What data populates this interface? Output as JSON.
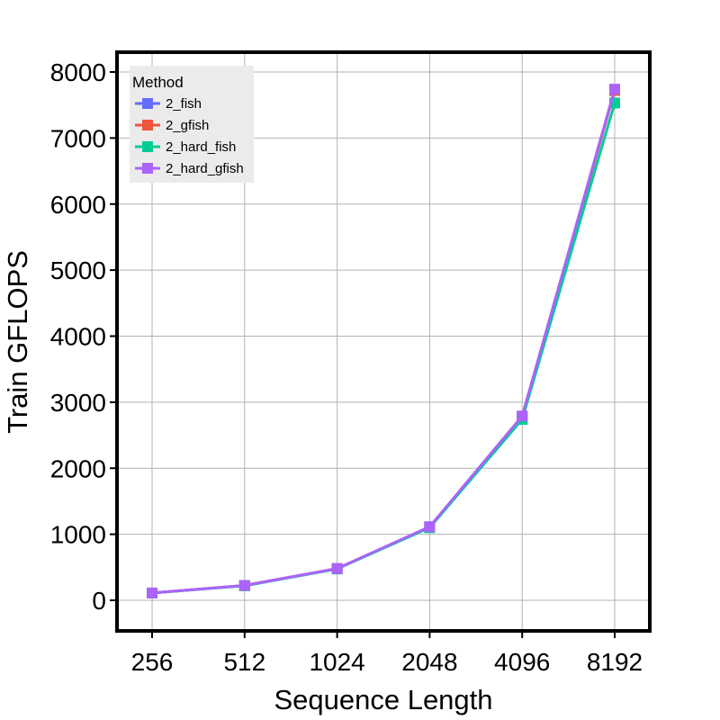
{
  "chart_data": {
    "type": "line",
    "xlabel": "Sequence Length",
    "ylabel": "Train GFLOPS",
    "categories": [
      "256",
      "512",
      "1024",
      "2048",
      "4096",
      "8192"
    ],
    "yticks": [
      0,
      1000,
      2000,
      3000,
      4000,
      5000,
      6000,
      7000,
      8000
    ],
    "ylim": [
      -450,
      8300
    ],
    "grid": true,
    "legend": {
      "title": "Method",
      "placement": "top-left"
    },
    "series": [
      {
        "name": "2_fish",
        "color": "#636efa",
        "values": [
          110,
          225,
          480,
          1110,
          2760,
          7720
        ]
      },
      {
        "name": "2_gfish",
        "color": "#ef553b",
        "values": [
          110,
          225,
          480,
          1110,
          2780,
          7720
        ]
      },
      {
        "name": "2_hard_fish",
        "color": "#00cc96",
        "values": [
          110,
          220,
          475,
          1100,
          2740,
          7530
        ]
      },
      {
        "name": "2_hard_gfish",
        "color": "#ab63fa",
        "values": [
          110,
          225,
          480,
          1115,
          2790,
          7740
        ]
      }
    ]
  }
}
